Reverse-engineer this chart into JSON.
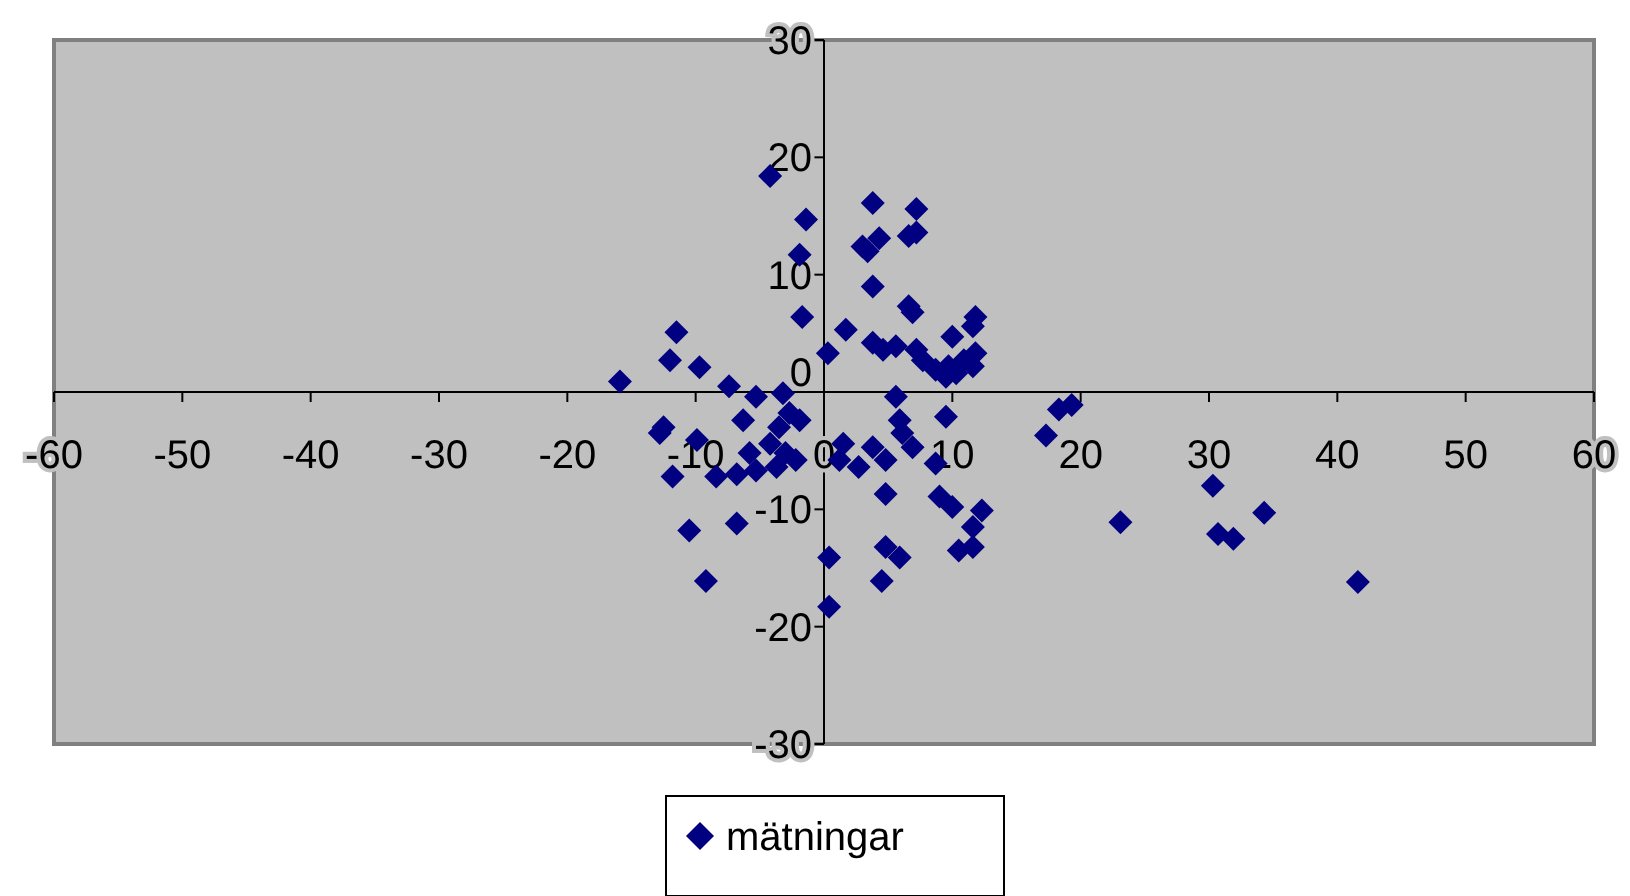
{
  "chart_data": {
    "type": "scatter",
    "xlim": [
      -60,
      60
    ],
    "ylim": [
      -30,
      30
    ],
    "xticks": [
      -60,
      -50,
      -40,
      -30,
      -20,
      -10,
      0,
      10,
      20,
      30,
      40,
      50,
      60
    ],
    "yticks": [
      -30,
      -20,
      -10,
      0,
      10,
      20,
      30
    ],
    "grid": false,
    "legend": "bottom",
    "marker": "diamond",
    "series": [
      {
        "name": "mätningar",
        "color": "#000080",
        "x": [
          -15.9,
          -11.5,
          -12.0,
          -9.7,
          -7.4,
          -4.2,
          -1.4,
          -1.9,
          -1.7,
          0.3,
          1.7,
          3.8,
          4.3,
          3.0,
          3.4,
          3.8,
          7.2,
          7.2,
          6.6,
          6.6,
          6.9,
          11.8,
          11.6,
          3.8,
          4.6,
          5.6,
          7.2,
          7.7,
          8.7,
          10.0,
          9.7,
          10.3,
          10.9,
          11.8,
          11.6,
          9.5,
          -5.3,
          -3.2,
          -6.3,
          -12.5,
          -12.8,
          -9.9,
          -11.8,
          -8.4,
          -5.8,
          -4.2,
          -3.5,
          -2.7,
          -1.9,
          -3.7,
          -2.2,
          -6.8,
          -5.3,
          -3.0,
          -6.8,
          -10.5,
          -9.2,
          0.4,
          0.4,
          1.5,
          1.2,
          2.7,
          3.8,
          4.8,
          4.8,
          5.6,
          5.9,
          6.1,
          6.9,
          4.8,
          5.9,
          4.5,
          9.5,
          8.7,
          9.0,
          10.0,
          12.3,
          11.6,
          10.5,
          11.6,
          18.3,
          19.3,
          17.3,
          23.1,
          30.3,
          30.7,
          31.9,
          34.3,
          41.6
        ],
        "values": [
          0.9,
          5.1,
          2.7,
          2.1,
          0.5,
          18.4,
          14.7,
          11.7,
          6.4,
          3.3,
          5.3,
          16.1,
          13.1,
          12.4,
          12.0,
          9.0,
          15.6,
          13.6,
          13.3,
          7.3,
          6.8,
          6.4,
          5.6,
          4.2,
          3.6,
          3.9,
          3.6,
          2.7,
          1.9,
          4.7,
          2.2,
          1.6,
          2.7,
          3.3,
          2.2,
          1.3,
          -0.4,
          -0.1,
          -2.4,
          -3.0,
          -3.5,
          -4.1,
          -7.2,
          -7.2,
          -5.2,
          -4.4,
          -3.0,
          -1.8,
          -2.4,
          -6.4,
          -5.8,
          -7.0,
          -6.7,
          -5.2,
          -11.2,
          -11.8,
          -16.1,
          -14.1,
          -18.3,
          -4.4,
          -5.8,
          -6.4,
          -4.7,
          -5.8,
          -8.7,
          -0.4,
          -2.4,
          -3.5,
          -4.7,
          -13.2,
          -14.1,
          -16.1,
          -2.1,
          -6.1,
          -8.9,
          -9.8,
          -10.1,
          -11.5,
          -13.5,
          -13.2,
          -1.5,
          -1.1,
          -3.7,
          -11.1,
          -8.0,
          -12.1,
          -12.5,
          -10.3,
          -16.2
        ]
      }
    ]
  }
}
